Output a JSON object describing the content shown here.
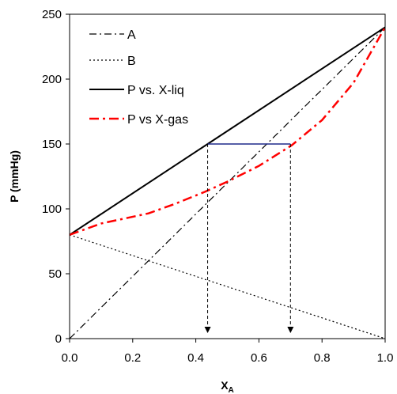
{
  "chart_data": {
    "type": "line",
    "xlabel_main": "X",
    "xlabel_sub": "A",
    "ylabel": "P (mmHg)",
    "xlim": [
      0.0,
      1.0
    ],
    "ylim": [
      0,
      250
    ],
    "x_ticks": [
      "0.0",
      "0.2",
      "0.4",
      "0.6",
      "0.8",
      "1.0"
    ],
    "y_ticks": [
      "0",
      "50",
      "100",
      "150",
      "200",
      "250"
    ],
    "grid": false,
    "legend_position": "top-left",
    "series": [
      {
        "name": "A",
        "color": "#000000",
        "style": "dash-dot",
        "x": [
          0,
          1
        ],
        "y": [
          0,
          240
        ]
      },
      {
        "name": "B",
        "color": "#000000",
        "style": "dotted",
        "x": [
          0,
          1
        ],
        "y": [
          80,
          0
        ]
      },
      {
        "name": "P vs. X-liq",
        "color": "#000000",
        "style": "solid",
        "x": [
          0,
          1
        ],
        "y": [
          80,
          240
        ]
      },
      {
        "name": "P vs X-gas",
        "color": "#ff0000",
        "style": "dash-dot",
        "x": [
          0.0,
          0.1,
          0.25,
          0.333,
          0.429,
          0.5,
          0.6,
          0.704,
          0.8,
          0.9,
          1.0
        ],
        "y": [
          80,
          88.7,
          96.5,
          103.8,
          113.2,
          121.0,
          133.1,
          149.0,
          168.4,
          197.2,
          240
        ]
      }
    ],
    "annotations": {
      "tie_line": {
        "color": "#1f2a8a",
        "x1": 0.4375,
        "x2": 0.7,
        "y": 150
      },
      "drop_arrows": [
        {
          "x": 0.4375,
          "y_from": 150,
          "y_to": 0
        },
        {
          "x": 0.7,
          "y_from": 150,
          "y_to": 0
        }
      ]
    }
  }
}
